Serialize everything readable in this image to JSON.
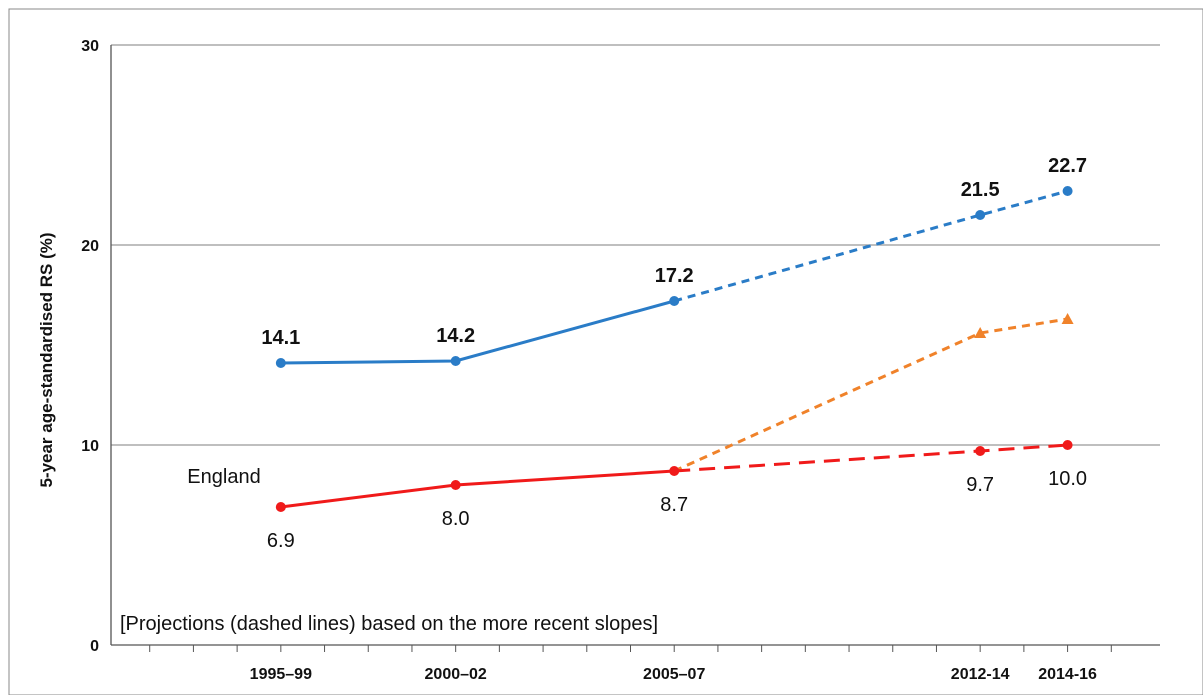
{
  "colors": {
    "blue": "#2a7cc7",
    "orange": "#f0822a",
    "red": "#f01a1a",
    "grid": "#999999",
    "text": "#111111"
  },
  "chart_data": {
    "type": "line",
    "ylabel": "5-year age-standardised RS (%)",
    "xlabel": "",
    "title": "",
    "ylim": [
      0,
      30
    ],
    "yticks": [
      "0",
      "10",
      "20",
      "30"
    ],
    "grid": true,
    "categories": [
      "1995–99",
      "2000–02",
      "2005–07",
      "2012-14",
      "2014-16"
    ],
    "x": [
      1997,
      2001,
      2006,
      2013,
      2015
    ],
    "series": [
      {
        "color": "blue",
        "marker": "circle",
        "points": [
          {
            "x": 1997,
            "y": 14.1,
            "label": "14.1"
          },
          {
            "x": 2001,
            "y": 14.2,
            "label": "14.2"
          },
          {
            "x": 2006,
            "y": 17.2,
            "label": "17.2"
          },
          {
            "x": 2013,
            "y": 21.5,
            "label": "21.5"
          },
          {
            "x": 2015,
            "y": 22.7,
            "label": "22.7"
          }
        ],
        "dashed_from": 2006
      },
      {
        "color": "orange",
        "marker": "triangle",
        "points": [
          {
            "x": 2006,
            "y": 8.7
          },
          {
            "x": 2013,
            "y": 15.6
          },
          {
            "x": 2015,
            "y": 16.3
          }
        ],
        "dashed_from": 2006
      },
      {
        "name": "England",
        "color": "red",
        "marker": "circle",
        "points": [
          {
            "x": 1997,
            "y": 6.9,
            "label": "6.9"
          },
          {
            "x": 2001,
            "y": 8.0,
            "label": "8.0"
          },
          {
            "x": 2006,
            "y": 8.7,
            "label": "8.7"
          },
          {
            "x": 2013,
            "y": 9.7,
            "label": "9.7"
          },
          {
            "x": 2015,
            "y": 10.0,
            "label": "10.0"
          }
        ],
        "dashed_from": 2006
      }
    ],
    "annotations": [
      "[Projections (dashed lines) based on the more recent slopes]"
    ]
  }
}
